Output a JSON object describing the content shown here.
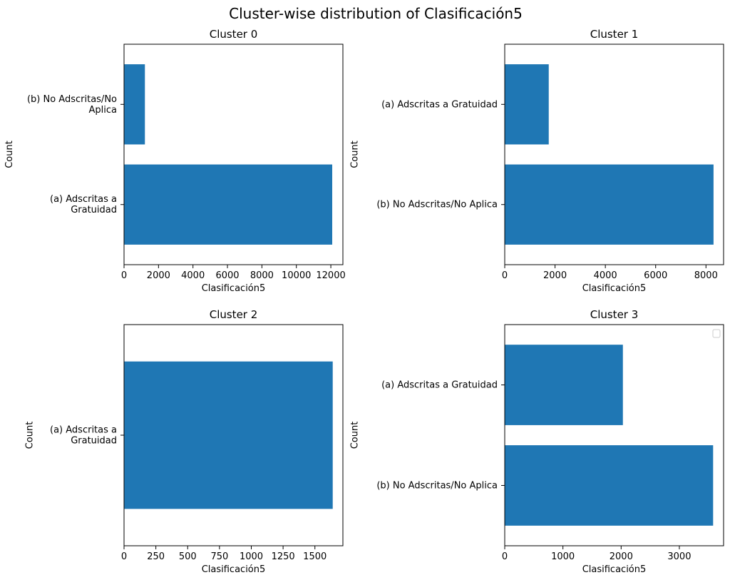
{
  "figure_title": "Cluster-wise distribution of Clasificación5",
  "colors": {
    "bar": "#1f77b4",
    "axis": "#000000",
    "background": "#ffffff"
  },
  "chart_data": [
    {
      "type": "bar",
      "orientation": "horizontal",
      "title": "Cluster 0",
      "xlabel": "Clasificación5",
      "ylabel": "Count",
      "categories": [
        {
          "label": "(a) Adscritas a Gratuidad",
          "lines": [
            "(a) Adscritas a",
            "Gratuidad"
          ]
        },
        {
          "label": "(b) No Adscritas/No Aplica",
          "lines": [
            "(b) No Adscritas/No",
            "Aplica"
          ]
        }
      ],
      "values": [
        12080,
        1210
      ],
      "xlim": [
        0,
        12700
      ],
      "xticks": [
        0,
        2000,
        4000,
        6000,
        8000,
        10000,
        12000
      ],
      "legend": false
    },
    {
      "type": "bar",
      "orientation": "horizontal",
      "title": "Cluster 1",
      "xlabel": "Clasificación5",
      "ylabel": "Count",
      "categories": [
        {
          "label": "(b) No Adscritas/No Aplica",
          "lines": [
            "(b) No Adscritas/No Aplica"
          ]
        },
        {
          "label": "(a) Adscritas a Gratuidad",
          "lines": [
            "(a) Adscritas a Gratuidad"
          ]
        }
      ],
      "values": [
        8300,
        1750
      ],
      "xlim": [
        0,
        8700
      ],
      "xticks": [
        0,
        2000,
        4000,
        6000,
        8000
      ],
      "legend": false
    },
    {
      "type": "bar",
      "orientation": "horizontal",
      "title": "Cluster 2",
      "xlabel": "Clasificación5",
      "ylabel": "Count",
      "categories": [
        {
          "label": "(a) Adscritas a Gratuidad",
          "lines": [
            "(a) Adscritas a",
            "Gratuidad"
          ]
        }
      ],
      "values": [
        1640
      ],
      "xlim": [
        0,
        1720
      ],
      "xticks": [
        0,
        250,
        500,
        750,
        1000,
        1250,
        1500
      ],
      "legend": false
    },
    {
      "type": "bar",
      "orientation": "horizontal",
      "title": "Cluster 3",
      "xlabel": "Clasificación5",
      "ylabel": "Count",
      "categories": [
        {
          "label": "(b) No Adscritas/No Aplica",
          "lines": [
            "(b) No Adscritas/No Aplica"
          ]
        },
        {
          "label": "(a) Adscritas a Gratuidad",
          "lines": [
            "(a) Adscritas a Gratuidad"
          ]
        }
      ],
      "values": [
        3580,
        2030
      ],
      "xlim": [
        0,
        3760
      ],
      "xticks": [
        0,
        1000,
        2000,
        3000
      ],
      "legend": true,
      "legend_position": "top-right"
    }
  ]
}
